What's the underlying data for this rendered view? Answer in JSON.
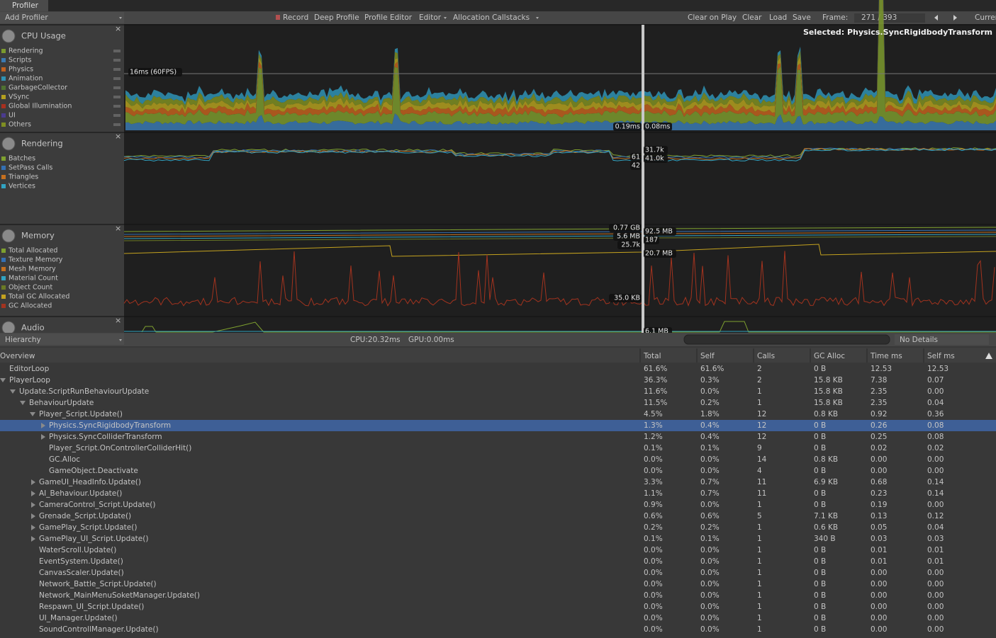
{
  "tab": "Profiler",
  "toolbar": {
    "add_profiler": "Add Profiler",
    "buttons": [
      "Record",
      "Deep Profile",
      "Profile Editor",
      "Editor",
      "Allocation Callstacks"
    ],
    "right_buttons": [
      "Clear on Play",
      "Clear",
      "Load",
      "Save"
    ],
    "frame_label": "Frame:",
    "frame": "271 / 393",
    "current": "Current"
  },
  "selected": "Selected: Physics.SyncRigidbodyTransform",
  "modules": [
    {
      "title": "CPU Usage",
      "items": [
        {
          "name": "Rendering",
          "color": "#7b9a2e"
        },
        {
          "name": "Scripts",
          "color": "#3b7ab3"
        },
        {
          "name": "Physics",
          "color": "#c2621f"
        },
        {
          "name": "Animation",
          "color": "#2f93b5"
        },
        {
          "name": "GarbageCollector",
          "color": "#4f7231"
        },
        {
          "name": "VSync",
          "color": "#b4a01f"
        },
        {
          "name": "Global Illumination",
          "color": "#a8301f"
        },
        {
          "name": "UI",
          "color": "#4a3b8f"
        },
        {
          "name": "Others",
          "color": "#7f8f22"
        }
      ],
      "labels": [
        "16ms (60FPS)",
        "0.19ms",
        "0.08ms"
      ]
    },
    {
      "title": "Rendering",
      "items": [
        {
          "name": "Batches",
          "color": "#7fa12f"
        },
        {
          "name": "SetPass Calls",
          "color": "#3470b4"
        },
        {
          "name": "Triangles",
          "color": "#c5701f"
        },
        {
          "name": "Vertices",
          "color": "#31a3c2"
        }
      ],
      "labels": [
        "61",
        "42",
        "31.7k",
        "41.0k"
      ]
    },
    {
      "title": "Memory",
      "items": [
        {
          "name": "Total Allocated",
          "color": "#7fa12f"
        },
        {
          "name": "Texture Memory",
          "color": "#3470b4"
        },
        {
          "name": "Mesh Memory",
          "color": "#c5701f"
        },
        {
          "name": "Material Count",
          "color": "#31a3c2"
        },
        {
          "name": "Object Count",
          "color": "#6b7a25"
        },
        {
          "name": "Total GC Allocated",
          "color": "#c4a21f"
        },
        {
          "name": "GC Allocated",
          "color": "#a3331f"
        }
      ],
      "labels": [
        "0.77 GB",
        "5.6 MB",
        "25.7k",
        "92.5 MB",
        "187",
        "20.7 MB",
        "35.0 KB"
      ]
    },
    {
      "title": "Audio",
      "items": [],
      "labels": [
        "6.1 MB"
      ]
    }
  ],
  "bottom_bar": {
    "view": "Hierarchy",
    "cpu": "CPU:20.32ms",
    "gpu": "GPU:0.00ms",
    "details": "No Details"
  },
  "table": {
    "columns": [
      "Overview",
      "Total",
      "Self",
      "Calls",
      "GC Alloc",
      "Time ms",
      "Self ms"
    ],
    "rows": [
      {
        "name": "EditorLoop",
        "cells": [
          "61.6%",
          "61.6%",
          "2",
          "0 B",
          "12.53",
          "12.53"
        ]
      },
      {
        "name": "PlayerLoop",
        "expanded": true,
        "cells": [
          "36.3%",
          "0.3%",
          "2",
          "15.8 KB",
          "7.38",
          "0.07"
        ],
        "children": [
          {
            "name": "Update.ScriptRunBehaviourUpdate",
            "expanded": true,
            "cells": [
              "11.6%",
              "0.0%",
              "1",
              "15.8 KB",
              "2.35",
              "0.00"
            ],
            "children": [
              {
                "name": "BehaviourUpdate",
                "expanded": true,
                "cells": [
                  "11.5%",
                  "0.2%",
                  "1",
                  "15.8 KB",
                  "2.35",
                  "0.04"
                ],
                "children": [
                  {
                    "name": "Player_Script.Update()",
                    "expanded": true,
                    "cells": [
                      "4.5%",
                      "1.8%",
                      "12",
                      "0.8 KB",
                      "0.92",
                      "0.36"
                    ],
                    "children": [
                      {
                        "name": "Physics.SyncRigidbodyTransform",
                        "expanded": false,
                        "selected": true,
                        "cells": [
                          "1.3%",
                          "0.4%",
                          "12",
                          "0 B",
                          "0.26",
                          "0.08"
                        ]
                      },
                      {
                        "name": "Physics.SyncColliderTransform",
                        "expanded": false,
                        "cells": [
                          "1.2%",
                          "0.4%",
                          "12",
                          "0 B",
                          "0.25",
                          "0.08"
                        ]
                      },
                      {
                        "name": "Player_Script.OnControllerColliderHit()",
                        "cells": [
                          "0.1%",
                          "0.1%",
                          "9",
                          "0 B",
                          "0.02",
                          "0.02"
                        ]
                      },
                      {
                        "name": "GC.Alloc",
                        "cells": [
                          "0.0%",
                          "0.0%",
                          "14",
                          "0.8 KB",
                          "0.00",
                          "0.00"
                        ]
                      },
                      {
                        "name": "GameObject.Deactivate",
                        "cells": [
                          "0.0%",
                          "0.0%",
                          "4",
                          "0 B",
                          "0.00",
                          "0.00"
                        ]
                      }
                    ]
                  },
                  {
                    "name": "GameUI_HeadInfo.Update()",
                    "expanded": false,
                    "cells": [
                      "3.3%",
                      "0.7%",
                      "11",
                      "6.9 KB",
                      "0.68",
                      "0.14"
                    ]
                  },
                  {
                    "name": "AI_Behaviour.Update()",
                    "expanded": false,
                    "cells": [
                      "1.1%",
                      "0.7%",
                      "11",
                      "0 B",
                      "0.23",
                      "0.14"
                    ]
                  },
                  {
                    "name": "CameraControl_Script.Update()",
                    "expanded": false,
                    "cells": [
                      "0.9%",
                      "0.0%",
                      "1",
                      "0 B",
                      "0.19",
                      "0.00"
                    ]
                  },
                  {
                    "name": "Grenade_Script.Update()",
                    "expanded": false,
                    "cells": [
                      "0.6%",
                      "0.6%",
                      "5",
                      "7.1 KB",
                      "0.13",
                      "0.12"
                    ]
                  },
                  {
                    "name": "GamePlay_Script.Update()",
                    "expanded": false,
                    "cells": [
                      "0.2%",
                      "0.2%",
                      "1",
                      "0.6 KB",
                      "0.05",
                      "0.04"
                    ]
                  },
                  {
                    "name": "GamePlay_UI_Script.Update()",
                    "expanded": false,
                    "cells": [
                      "0.1%",
                      "0.1%",
                      "1",
                      "340 B",
                      "0.03",
                      "0.03"
                    ]
                  },
                  {
                    "name": "WaterScroll.Update()",
                    "cells": [
                      "0.0%",
                      "0.0%",
                      "1",
                      "0 B",
                      "0.01",
                      "0.01"
                    ]
                  },
                  {
                    "name": "EventSystem.Update()",
                    "cells": [
                      "0.0%",
                      "0.0%",
                      "1",
                      "0 B",
                      "0.01",
                      "0.01"
                    ]
                  },
                  {
                    "name": "CanvasScaler.Update()",
                    "cells": [
                      "0.0%",
                      "0.0%",
                      "1",
                      "0 B",
                      "0.00",
                      "0.00"
                    ]
                  },
                  {
                    "name": "Network_Battle_Script.Update()",
                    "cells": [
                      "0.0%",
                      "0.0%",
                      "1",
                      "0 B",
                      "0.00",
                      "0.00"
                    ]
                  },
                  {
                    "name": "Network_MainMenuSoketManager.Update()",
                    "cells": [
                      "0.0%",
                      "0.0%",
                      "1",
                      "0 B",
                      "0.00",
                      "0.00"
                    ]
                  },
                  {
                    "name": "Respawn_UI_Script.Update()",
                    "cells": [
                      "0.0%",
                      "0.0%",
                      "1",
                      "0 B",
                      "0.00",
                      "0.00"
                    ]
                  },
                  {
                    "name": "UI_Manager.Update()",
                    "cells": [
                      "0.0%",
                      "0.0%",
                      "1",
                      "0 B",
                      "0.00",
                      "0.00"
                    ]
                  },
                  {
                    "name": "SoundControllManager.Update()",
                    "cells": [
                      "0.0%",
                      "0.0%",
                      "1",
                      "0 B",
                      "0.00",
                      "0.00"
                    ]
                  }
                ]
              }
            ]
          }
        ]
      }
    ]
  }
}
